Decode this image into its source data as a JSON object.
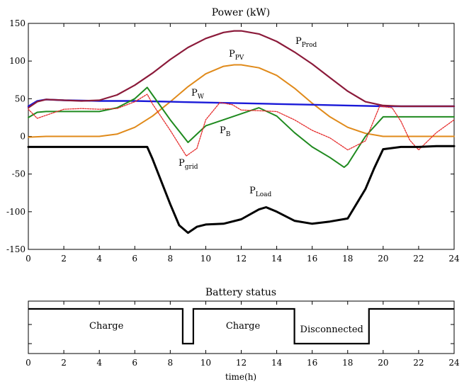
{
  "chart_data": [
    {
      "type": "line",
      "title": "Power (kW)",
      "xlabel": "",
      "ylabel": "",
      "xlim": [
        0,
        24
      ],
      "ylim": [
        -150,
        150
      ],
      "xticks": [
        0,
        2,
        4,
        6,
        8,
        10,
        12,
        14,
        16,
        18,
        20,
        22,
        24
      ],
      "yticks": [
        150,
        100,
        50,
        0,
        -50,
        -100,
        -150
      ],
      "grid": false,
      "legend": "none",
      "series": [
        {
          "name": "P",
          "sub": "Prod",
          "color": "#8b1a3a",
          "x": [
            0,
            0.5,
            1,
            2,
            3,
            4,
            5,
            6,
            7,
            8,
            9,
            10,
            11,
            11.6,
            12,
            13,
            14,
            15,
            16,
            17,
            18,
            19,
            20,
            21,
            22,
            23,
            24
          ],
          "y": [
            38,
            46,
            49,
            48,
            47,
            48,
            55,
            68,
            84,
            102,
            118,
            130,
            138,
            140,
            140,
            136,
            126,
            112,
            96,
            78,
            60,
            46,
            41,
            40,
            40,
            40,
            40
          ]
        },
        {
          "name": "P",
          "sub": "PV",
          "color": "#e08a1a",
          "x": [
            0,
            1,
            2,
            3,
            4,
            5,
            6,
            7,
            8,
            9,
            10,
            11,
            11.6,
            12,
            13,
            14,
            15,
            16,
            17,
            18,
            19,
            20,
            21,
            22,
            23,
            24
          ],
          "y": [
            -1,
            0,
            0,
            0,
            0,
            3,
            12,
            27,
            46,
            66,
            83,
            93,
            95,
            95,
            91,
            81,
            64,
            44,
            26,
            12,
            4,
            0,
            0,
            0,
            0,
            0
          ]
        },
        {
          "name": "P",
          "sub": "W",
          "color": "#1a1ad8",
          "x": [
            0,
            0.5,
            1,
            2,
            4,
            6,
            8,
            10,
            12,
            14,
            16,
            18,
            20,
            22,
            24
          ],
          "y": [
            40,
            47,
            49,
            48,
            47,
            47,
            46,
            45,
            44,
            43,
            42,
            41,
            40,
            40,
            40
          ]
        },
        {
          "name": "P",
          "sub": "B",
          "color": "#1f8a1f",
          "x": [
            0,
            0.5,
            1,
            2,
            3,
            4,
            5,
            6,
            6.7,
            7,
            8,
            9,
            10,
            11,
            12,
            13,
            14,
            15,
            16,
            17,
            17.8,
            18,
            19,
            20,
            21,
            22,
            23,
            24
          ],
          "y": [
            25,
            32,
            33,
            33,
            33,
            33,
            38,
            50,
            65,
            55,
            22,
            -8,
            14,
            22,
            30,
            38,
            27,
            5,
            -14,
            -28,
            -41,
            -37,
            0,
            26,
            26,
            26,
            26,
            26
          ]
        },
        {
          "name": "P",
          "sub": "grid",
          "color": "#e52a2a",
          "x": [
            0,
            0.5,
            1,
            2,
            3,
            4,
            5,
            6,
            6.7,
            7,
            8,
            8.9,
            9.5,
            10,
            10.8,
            11.5,
            12,
            13,
            14,
            15,
            16,
            17,
            18,
            19,
            19.8,
            20.5,
            21,
            21.5,
            22,
            23,
            24
          ],
          "y": [
            36,
            24,
            28,
            36,
            37,
            36,
            37,
            46,
            56,
            43,
            8,
            -26,
            -16,
            22,
            45,
            42,
            35,
            34,
            33,
            22,
            8,
            -2,
            -18,
            -6,
            40,
            38,
            20,
            -5,
            -18,
            5,
            22
          ]
        },
        {
          "name": "P",
          "sub": "Load",
          "color": "#000000",
          "x": [
            0,
            1,
            2,
            3,
            4,
            5,
            6,
            6.7,
            7,
            7.5,
            8,
            8.5,
            9,
            9.5,
            10,
            11,
            12,
            13,
            13.4,
            14,
            15,
            16,
            17,
            18,
            19,
            19.5,
            20,
            21,
            22,
            23,
            24
          ],
          "y": [
            -14,
            -14,
            -14,
            -14,
            -14,
            -14,
            -14,
            -14,
            -30,
            -60,
            -90,
            -118,
            -128,
            -120,
            -117,
            -116,
            -110,
            -97,
            -94,
            -100,
            -112,
            -116,
            -113,
            -109,
            -70,
            -42,
            -17,
            -14,
            -14,
            -13,
            -13
          ]
        }
      ]
    },
    {
      "type": "line",
      "title": "Battery status",
      "xlabel": "time(h)",
      "ylabel": "",
      "xlim": [
        0,
        24
      ],
      "ylim": [
        0,
        1
      ],
      "xticks": [
        0,
        2,
        4,
        6,
        8,
        10,
        12,
        14,
        16,
        18,
        20,
        22,
        24
      ],
      "grid": false,
      "legend": "none",
      "series": [
        {
          "name": "",
          "color": "#000000",
          "x": [
            0,
            8.7,
            8.7,
            9.3,
            9.3,
            15.0,
            15.0,
            19.2,
            19.2,
            24
          ],
          "y": [
            1,
            1,
            0,
            0,
            1,
            1,
            0,
            0,
            1,
            1
          ]
        }
      ],
      "annotations": [
        {
          "x": 4.4,
          "text": "Charge"
        },
        {
          "x": 12.1,
          "text": "Charge"
        },
        {
          "x": 17.1,
          "text": "Disconnected"
        }
      ]
    }
  ]
}
